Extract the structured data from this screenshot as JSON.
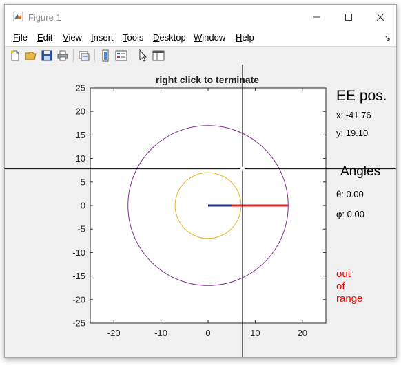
{
  "window": {
    "title": "Figure 1"
  },
  "menu": {
    "file": {
      "u": "F",
      "rest": "ile"
    },
    "edit": {
      "u": "E",
      "rest": "dit"
    },
    "view": {
      "u": "V",
      "rest": "iew"
    },
    "insert": {
      "u": "I",
      "rest": "nsert"
    },
    "tools": {
      "u": "T",
      "rest": "ools"
    },
    "desktop": {
      "u": "D",
      "rest": "esktop"
    },
    "window": {
      "u": "W",
      "rest": "indow"
    },
    "help": {
      "u": "H",
      "rest": "elp"
    }
  },
  "toolbar": {
    "icons": [
      "new-figure-icon",
      "open-file-icon",
      "save-icon",
      "print-icon",
      "link-plot-icon",
      "insert-colorbar-icon",
      "insert-legend-icon",
      "edit-plot-icon",
      "property-inspector-icon"
    ]
  },
  "colors": {
    "outer_circle": "#7e2f8e",
    "inner_circle": "#edb120",
    "link1": "#1f2f8f",
    "link2": "#e02020",
    "out_of_range": "#ff0000"
  },
  "chart_data": {
    "type": "line",
    "title": "right click to terminate",
    "xlim": [
      -25,
      25
    ],
    "ylim": [
      -25,
      25
    ],
    "xticks": [
      "-20",
      "-10",
      "0",
      "10",
      "20"
    ],
    "yticks": [
      "25",
      "20",
      "15",
      "10",
      "5",
      "0",
      "-5",
      "-10",
      "-15",
      "-20",
      "-25"
    ],
    "series": [
      {
        "kind": "circle",
        "cx": 0,
        "cy": 0,
        "r": 17,
        "color": "#7e2f8e"
      },
      {
        "kind": "circle",
        "cx": 0,
        "cy": 0,
        "r": 7,
        "color": "#edb120"
      },
      {
        "kind": "segment",
        "x": [
          0,
          5
        ],
        "y": [
          0,
          0
        ],
        "color": "#1f2f8f"
      },
      {
        "kind": "segment",
        "x": [
          5,
          17
        ],
        "y": [
          0,
          0
        ],
        "color": "#e02020"
      }
    ],
    "crosshair": {
      "x": 7.3,
      "y": 7.8
    }
  },
  "panel": {
    "ee_title": "EE pos.",
    "x_text": "x: -41.76",
    "y_text": "y: 19.10",
    "angles_title": "Angles",
    "theta_text": "θ: 0.00",
    "phi_text": "φ: 0.00",
    "status_line1": "out",
    "status_line2": "of",
    "status_line3": "range"
  }
}
